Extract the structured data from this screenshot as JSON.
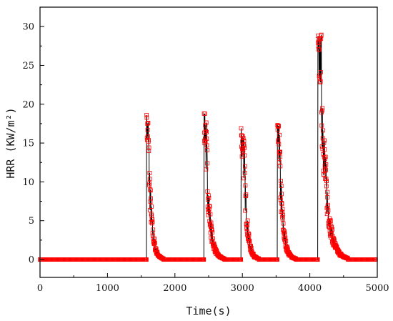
{
  "chart_data": {
    "type": "line",
    "title": "",
    "xlabel": "Time(s)",
    "ylabel": "HRR (KW/m²)",
    "xlim": [
      0,
      5000
    ],
    "ylim": [
      -2.3,
      32.5
    ],
    "xticks": [
      0,
      1000,
      2000,
      3000,
      4000,
      5000
    ],
    "yticks": [
      0,
      5,
      10,
      15,
      20,
      25,
      30
    ],
    "grid": false,
    "legend": "none",
    "colors": {
      "line": "#000000",
      "marker": "#ff0000"
    },
    "marker": "open-square",
    "peaks": [
      {
        "time": 1580,
        "peak": 18.6,
        "width": 24,
        "decay": 45
      },
      {
        "time": 2430,
        "peak": 18.8,
        "width": 28,
        "decay": 55
      },
      {
        "time": 2980,
        "peak": 16.9,
        "width": 40,
        "decay": 45
      },
      {
        "time": 3520,
        "peak": 17.3,
        "width": 24,
        "decay": 50
      },
      {
        "time": 4120,
        "peak": 28.8,
        "width": 45,
        "decay": 80
      }
    ],
    "baseline": 0,
    "x_range": [
      0,
      4980
    ]
  }
}
